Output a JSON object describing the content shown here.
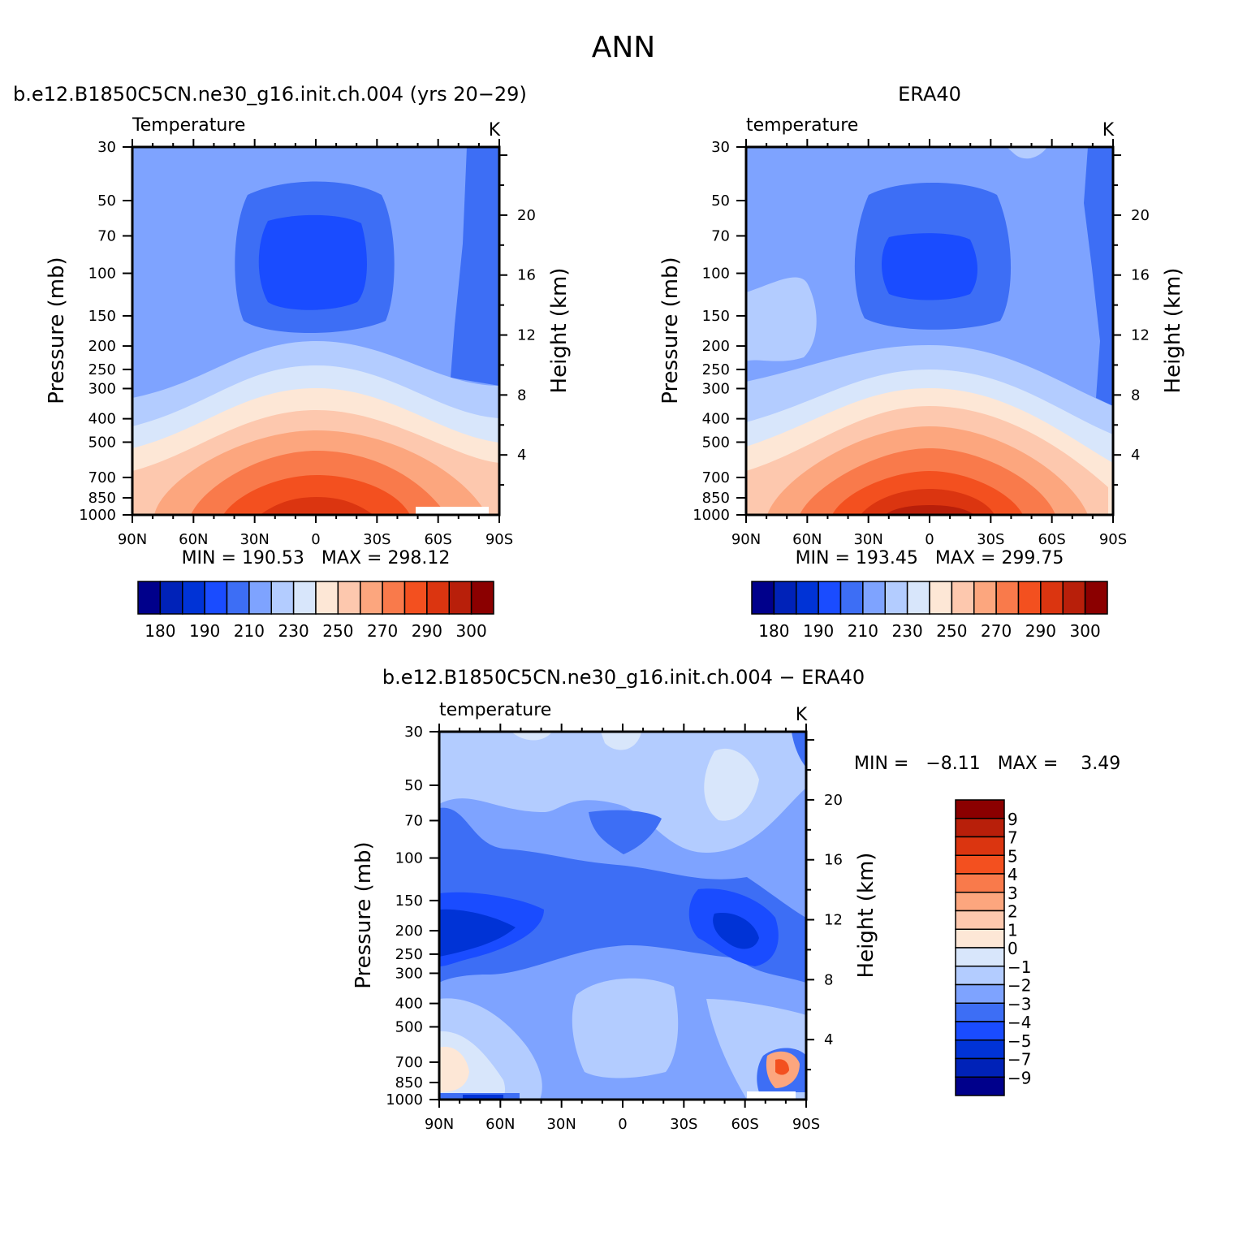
{
  "figure": {
    "title": "ANN",
    "model_title": "b.e12.B1850C5CN.ne30_g16.init.ch.004 (yrs 20−29)",
    "obs_title": "ERA40",
    "diff_title": "b.e12.B1850C5CN.ne30_g16.init.ch.004 − ERA40"
  },
  "chart_data": [
    {
      "id": "model",
      "type": "contour",
      "variable_label": "Temperature",
      "units": "K",
      "xlabel": "",
      "ylabel": "Pressure (mb)",
      "ylabel_right": "Height (km)",
      "x_ticks": [
        "90N",
        "60N",
        "30N",
        "0",
        "30S",
        "60S",
        "90S"
      ],
      "y_ticks": [
        30,
        50,
        70,
        100,
        150,
        200,
        250,
        300,
        400,
        500,
        700,
        850,
        1000
      ],
      "y_ticks_right": [
        4,
        8,
        12,
        16,
        20
      ],
      "ylim": [
        1000,
        30
      ],
      "y_scale": "log-pressure",
      "stats": {
        "min_label": "MIN =",
        "min": "190.53",
        "max_label": "MAX =",
        "max": "298.12"
      },
      "colorbar": {
        "orientation": "horizontal",
        "labels": [
          "180",
          "190",
          "210",
          "230",
          "250",
          "270",
          "290",
          "300"
        ]
      }
    },
    {
      "id": "obs",
      "type": "contour",
      "variable_label": "temperature",
      "units": "K",
      "xlabel": "",
      "ylabel": "Pressure (mb)",
      "ylabel_right": "Height (km)",
      "x_ticks": [
        "90N",
        "60N",
        "30N",
        "0",
        "30S",
        "60S",
        "90S"
      ],
      "y_ticks": [
        30,
        50,
        70,
        100,
        150,
        200,
        250,
        300,
        400,
        500,
        700,
        850,
        1000
      ],
      "y_ticks_right": [
        4,
        8,
        12,
        16,
        20
      ],
      "ylim": [
        1000,
        30
      ],
      "y_scale": "log-pressure",
      "stats": {
        "min_label": "MIN =",
        "min": "193.45",
        "max_label": "MAX =",
        "max": "299.75"
      },
      "colorbar": {
        "orientation": "horizontal",
        "labels": [
          "180",
          "190",
          "210",
          "230",
          "250",
          "270",
          "290",
          "300"
        ]
      }
    },
    {
      "id": "diff",
      "type": "contour",
      "variable_label": "temperature",
      "units": "K",
      "xlabel": "",
      "ylabel": "Pressure (mb)",
      "ylabel_right": "Height (km)",
      "x_ticks": [
        "90N",
        "60N",
        "30N",
        "0",
        "30S",
        "60S",
        "90S"
      ],
      "y_ticks": [
        30,
        50,
        70,
        100,
        150,
        200,
        250,
        300,
        400,
        500,
        700,
        850,
        1000
      ],
      "y_ticks_right": [
        4,
        8,
        12,
        16,
        20
      ],
      "ylim": [
        1000,
        30
      ],
      "y_scale": "log-pressure",
      "stats": {
        "min_label": "MIN =",
        "min": "−8.11",
        "max_label": "MAX =",
        "max": "3.49"
      },
      "colorbar": {
        "orientation": "vertical",
        "labels": [
          "9",
          "7",
          "5",
          "4",
          "3",
          "2",
          "1",
          "0",
          "−1",
          "−2",
          "−3",
          "−4",
          "−5",
          "−7",
          "−9"
        ]
      }
    }
  ],
  "colors": {
    "abs_palette": [
      "#00008b",
      "#0022b8",
      "#0033d6",
      "#1a4cff",
      "#3d6ef5",
      "#7ea3ff",
      "#b3ccff",
      "#d8e6fb",
      "#fde7d6",
      "#fdc8ae",
      "#fca67e",
      "#f97a4b",
      "#f3501f",
      "#db3510",
      "#b81f0a",
      "#8b0000"
    ],
    "diff_palette": [
      "#00008b",
      "#0022b8",
      "#0033d6",
      "#1a4cff",
      "#3d6ef5",
      "#7ea3ff",
      "#b3ccff",
      "#d8e6fb",
      "#fde7d6",
      "#fdc8ae",
      "#fca67e",
      "#f97a4b",
      "#f3501f",
      "#db3510",
      "#b81f0a",
      "#8b0000"
    ]
  }
}
